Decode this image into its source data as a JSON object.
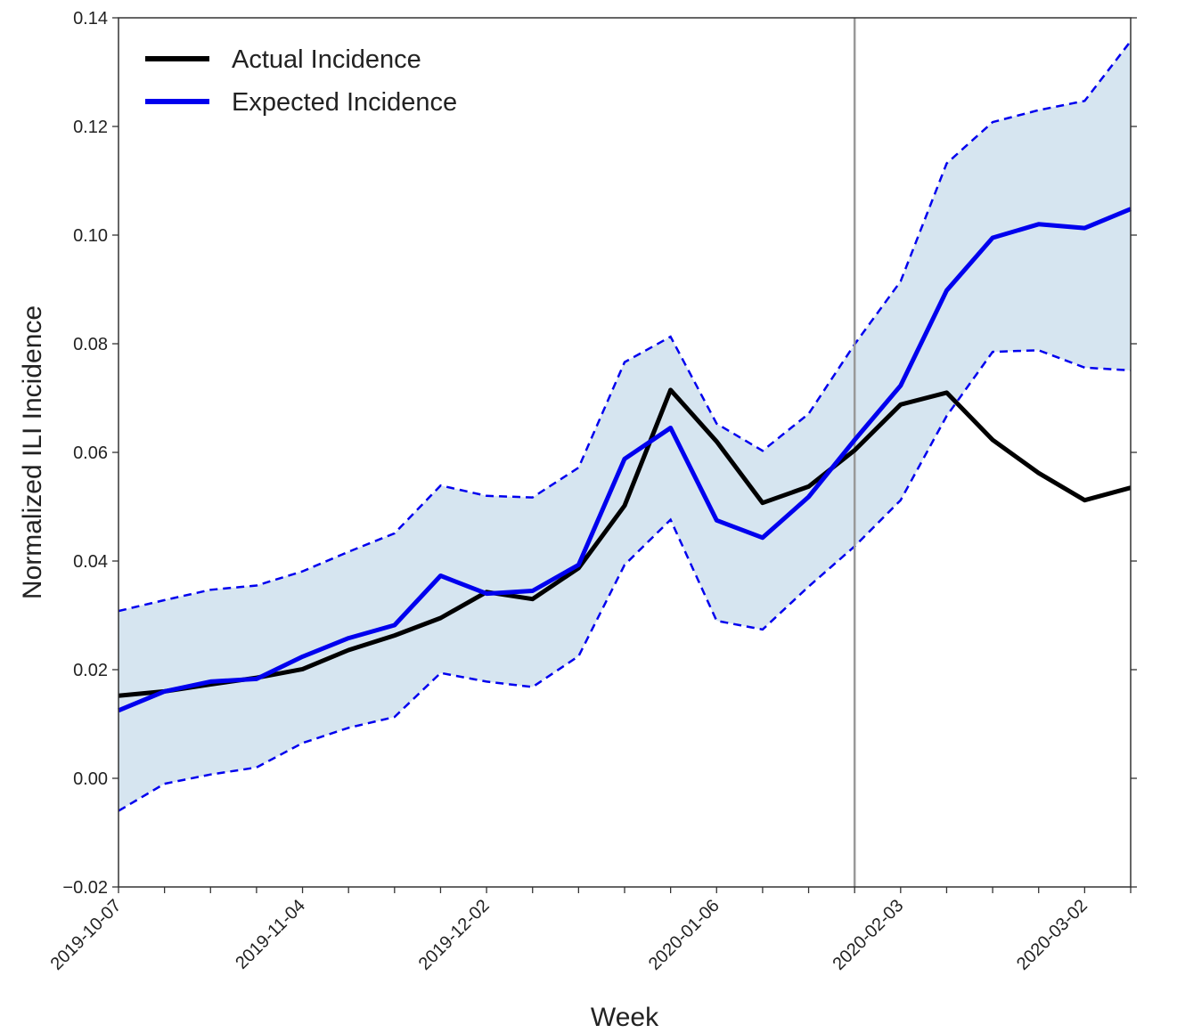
{
  "chart_data": {
    "type": "line",
    "xlabel": "Week",
    "ylabel": "Normalized ILI Incidence",
    "x": [
      "2019-10-07",
      "2019-10-14",
      "2019-10-21",
      "2019-10-28",
      "2019-11-04",
      "2019-11-11",
      "2019-11-18",
      "2019-11-25",
      "2019-12-02",
      "2019-12-09",
      "2019-12-16",
      "2019-12-23",
      "2019-12-30",
      "2020-01-06",
      "2020-01-13",
      "2020-01-20",
      "2020-01-27",
      "2020-02-03",
      "2020-02-10",
      "2020-02-17",
      "2020-02-24",
      "2020-03-02",
      "2020-03-09"
    ],
    "x_tick_labels": [
      "2019-10-07",
      "2019-11-04",
      "2019-12-02",
      "2020-01-06",
      "2020-02-03",
      "2020-03-02"
    ],
    "ylim": [
      -0.02,
      0.14
    ],
    "y_ticks": [
      "−0.02",
      "0.00",
      "0.02",
      "0.04",
      "0.06",
      "0.08",
      "0.10",
      "0.12",
      "0.14"
    ],
    "legend_position": "top-left",
    "grid": false,
    "series": [
      {
        "name": "Actual Incidence",
        "color": "#000000",
        "values": [
          0.0152,
          0.016,
          0.0173,
          0.0185,
          0.0201,
          0.0236,
          0.0263,
          0.0295,
          0.0343,
          0.033,
          0.0387,
          0.0502,
          0.0715,
          0.062,
          0.0507,
          0.0537,
          0.0604,
          0.0688,
          0.071,
          0.0623,
          0.0562,
          0.0512,
          0.0535
        ]
      },
      {
        "name": "Expected Incidence",
        "color": "#0000ee",
        "values": [
          0.0125,
          0.016,
          0.0178,
          0.0183,
          0.0224,
          0.0258,
          0.0282,
          0.0373,
          0.034,
          0.0345,
          0.0393,
          0.0588,
          0.0645,
          0.0475,
          0.0443,
          0.0518,
          0.0623,
          0.0723,
          0.0898,
          0.0995,
          0.102,
          0.1013,
          0.1048
        ]
      }
    ],
    "band": {
      "fill": "#d6e5f0",
      "line_color": "#0000ee",
      "upper": [
        0.0308,
        0.0328,
        0.0347,
        0.0355,
        0.0381,
        0.0417,
        0.0451,
        0.0539,
        0.052,
        0.0517,
        0.0572,
        0.0766,
        0.0813,
        0.0653,
        0.0603,
        0.0671,
        0.0799,
        0.0915,
        0.1132,
        0.1208,
        0.123,
        0.1247,
        0.1357
      ],
      "lower": [
        -0.006,
        -0.001,
        0.0007,
        0.002,
        0.0065,
        0.0093,
        0.0113,
        0.0194,
        0.0178,
        0.0168,
        0.0225,
        0.0393,
        0.0476,
        0.029,
        0.0274,
        0.0353,
        0.0427,
        0.0512,
        0.0667,
        0.0785,
        0.0788,
        0.0756,
        0.0751
      ]
    },
    "vline": {
      "x": "2020-01-27",
      "color": "#999999"
    }
  }
}
